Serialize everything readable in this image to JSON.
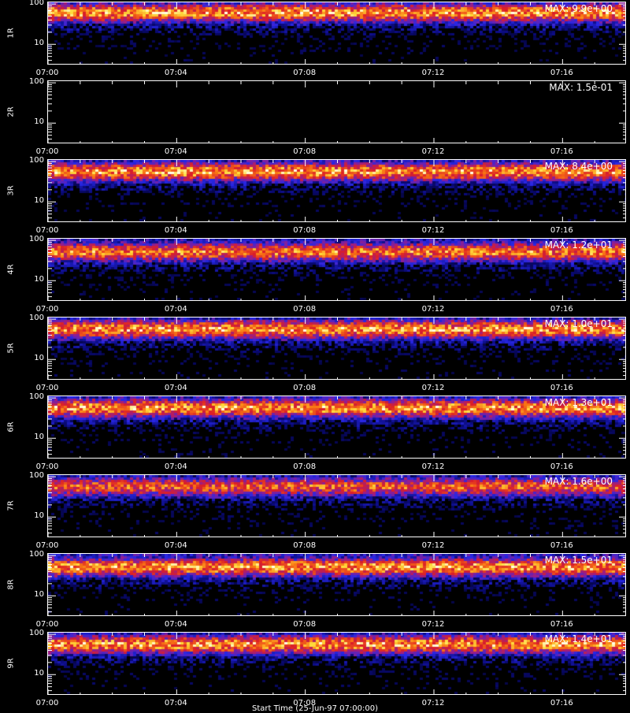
{
  "chart_data": {
    "type": "heatmap",
    "x_tick_labels": [
      "07:00",
      "07:04",
      "07:08",
      "07:12",
      "07:16"
    ],
    "x_range": [
      "07:00",
      "07:18"
    ],
    "y_scale": "log",
    "y_tick_labels": [
      "100",
      "10"
    ],
    "y_range": [
      3,
      110
    ],
    "xlabel": "Start Time (25-Jun-97 07:00:00)",
    "panels": [
      {
        "label": "1R",
        "max_label": "MAX: 9.9e+00",
        "band": 65,
        "level": 0.85
      },
      {
        "label": "2R",
        "max_label": "MAX: 1.5e-01",
        "band": 65,
        "level": 0.0
      },
      {
        "label": "3R",
        "max_label": "MAX: 8.4e+00",
        "band": 60,
        "level": 0.85
      },
      {
        "label": "4R",
        "max_label": "MAX: 1.2e+01",
        "band": 55,
        "level": 0.8
      },
      {
        "label": "5R",
        "max_label": "MAX: 1.0e+01",
        "band": 60,
        "level": 0.85
      },
      {
        "label": "6R",
        "max_label": "MAX: 1.3e+01",
        "band": 60,
        "level": 0.85
      },
      {
        "label": "7R",
        "max_label": "MAX: 1.6e+00",
        "band": 60,
        "level": 0.75
      },
      {
        "label": "8R",
        "max_label": "MAX: 1.5e+01",
        "band": 55,
        "level": 0.85
      },
      {
        "label": "9R",
        "max_label": "MAX: 1.4e+01",
        "band": 60,
        "level": 0.85
      }
    ]
  }
}
